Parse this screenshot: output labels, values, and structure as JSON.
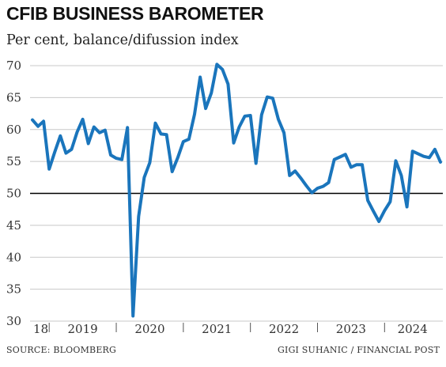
{
  "header": {
    "title": "CFIB BUSINESS BAROMETER",
    "subtitle": "Per cent, balance/difussion index"
  },
  "footer": {
    "source": "SOURCE: BLOOMBERG",
    "credit": "GIGI SUHANIC / FINANCIAL POST"
  },
  "colors": {
    "line": "#1a75bc",
    "baseline": "#000000",
    "grid": "#c8c8c8"
  },
  "chart_data": {
    "type": "line",
    "title": "CFIB BUSINESS BAROMETER",
    "subtitle": "Per cent, balance/difussion index",
    "xlabel": "",
    "ylabel": "",
    "ylim": [
      30,
      70
    ],
    "xlim": [
      "2018-10",
      "2024-11"
    ],
    "grid": "horizontal",
    "legend": "none",
    "y_ticks": [
      "30",
      "35",
      "40",
      "45",
      "50",
      "55",
      "60",
      "65",
      "70"
    ],
    "x_tick_labels": [
      "18",
      "2019",
      "2020",
      "2021",
      "2022",
      "2023",
      "2024"
    ],
    "reference_line": 50,
    "series": [
      {
        "x": [
          "2018-10",
          "2018-11",
          "2018-12",
          "2019-01",
          "2019-02",
          "2019-03",
          "2019-04",
          "2019-05",
          "2019-06",
          "2019-07",
          "2019-08",
          "2019-09",
          "2019-10",
          "2019-11",
          "2019-12",
          "2020-01",
          "2020-02",
          "2020-03",
          "2020-04",
          "2020-05",
          "2020-06",
          "2020-07",
          "2020-08",
          "2020-09",
          "2020-10",
          "2020-11",
          "2020-12",
          "2021-01",
          "2021-02",
          "2021-03",
          "2021-04",
          "2021-05",
          "2021-06",
          "2021-07",
          "2021-08",
          "2021-09",
          "2021-10",
          "2021-11",
          "2021-12",
          "2022-01",
          "2022-02",
          "2022-03",
          "2022-04",
          "2022-05",
          "2022-06",
          "2022-07",
          "2022-08",
          "2022-09",
          "2022-10",
          "2022-11",
          "2022-12",
          "2023-01",
          "2023-02",
          "2023-03",
          "2023-04",
          "2023-05",
          "2023-06",
          "2023-07",
          "2023-08",
          "2023-09",
          "2023-10",
          "2023-11",
          "2023-12",
          "2024-01",
          "2024-02",
          "2024-03",
          "2024-04",
          "2024-05",
          "2024-06",
          "2024-07",
          "2024-08",
          "2024-09",
          "2024-10",
          "2024-11"
        ],
        "values": [
          61.5,
          60.5,
          61.3,
          53.8,
          56.5,
          59.0,
          56.3,
          56.9,
          59.6,
          61.6,
          57.8,
          60.4,
          59.5,
          59.9,
          56.0,
          55.5,
          55.3,
          60.3,
          30.8,
          46.4,
          52.5,
          54.8,
          61.0,
          59.3,
          59.2,
          53.4,
          55.6,
          58.1,
          58.5,
          62.4,
          68.2,
          63.3,
          65.7,
          70.2,
          69.4,
          67.1,
          57.9,
          60.4,
          62.1,
          62.2,
          54.7,
          62.3,
          65.1,
          64.9,
          61.6,
          59.5,
          52.8,
          53.5,
          52.4,
          51.2,
          50.1,
          50.8,
          51.1,
          51.7,
          55.3,
          55.7,
          56.1,
          54.1,
          54.5,
          54.5,
          48.9,
          47.2,
          45.6,
          47.3,
          48.7,
          55.1,
          52.8,
          47.9,
          56.6,
          56.2,
          55.8,
          55.6,
          56.9,
          54.9
        ]
      }
    ]
  }
}
